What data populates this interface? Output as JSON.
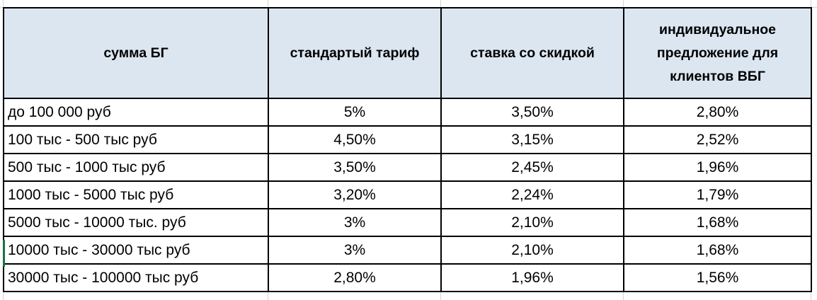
{
  "table": {
    "columns": [
      "сумма БГ",
      "стандартый тариф",
      "ставка со скидкой",
      "индивидуальное предложение для клиентов ВБГ"
    ],
    "rows": [
      [
        "до 100 000 руб",
        "5%",
        "3,50%",
        "2,80%"
      ],
      [
        "100 тыс - 500 тыс руб",
        "4,50%",
        "3,15%",
        "2,52%"
      ],
      [
        "500 тыс - 1000 тыс руб",
        "3,50%",
        "2,45%",
        "1,96%"
      ],
      [
        "1000 тыс - 5000 тыс руб",
        "3,20%",
        "2,24%",
        "1,79%"
      ],
      [
        "5000 тыс - 10000 тыс. руб",
        "3%",
        "2,10%",
        "1,68%"
      ],
      [
        "10000 тыс - 30000 тыс руб",
        "3%",
        "2,10%",
        "1,68%"
      ],
      [
        "30000 тыс - 100000 тыс руб",
        "2,80%",
        "1,96%",
        "1,56%"
      ]
    ]
  }
}
